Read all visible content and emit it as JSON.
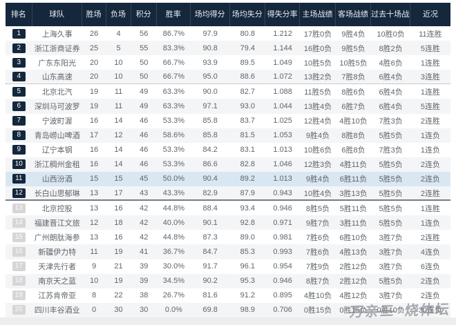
{
  "table": {
    "headers": [
      "排名",
      "球队",
      "胜场",
      "负场",
      "积分",
      "胜率",
      "场均得分",
      "场均失分",
      "得失分率",
      "主场战绩",
      "客场战绩",
      "过去十场战绩",
      "近况"
    ],
    "rows": [
      [
        "1",
        "上海久事",
        "26",
        "4",
        "56",
        "86.7%",
        "97.9",
        "80.8",
        "1.212",
        "17胜0负",
        "9胜4负",
        "10胜0负",
        "11连胜"
      ],
      [
        "2",
        "浙江浙商证券",
        "25",
        "5",
        "55",
        "83.3%",
        "90.8",
        "79.4",
        "1.144",
        "16胜0负",
        "9胜5负",
        "8胜2负",
        "5连胜"
      ],
      [
        "3",
        "广东东阳光",
        "20",
        "10",
        "50",
        "66.7%",
        "93.9",
        "89.5",
        "1.049",
        "10胜5负",
        "10胜5负",
        "4胜6负",
        "1连胜"
      ],
      [
        "4",
        "山东高速",
        "20",
        "10",
        "50",
        "66.7%",
        "95.0",
        "88.6",
        "1.072",
        "13胜2负",
        "7胜8负",
        "6胜4负",
        "3连胜"
      ],
      [
        "5",
        "北京北汽",
        "19",
        "11",
        "49",
        "63.3%",
        "90.0",
        "82.7",
        "1.088",
        "11胜5负",
        "8胜6负",
        "6胜4负",
        "1连胜"
      ],
      [
        "6",
        "深圳马可波罗",
        "19",
        "11",
        "49",
        "63.3%",
        "97.1",
        "93.0",
        "1.044",
        "13胜4负",
        "6胜7负",
        "6胜4负",
        "5连胜"
      ],
      [
        "7",
        "宁波町渥",
        "16",
        "14",
        "46",
        "53.3%",
        "85.8",
        "83.7",
        "1.025",
        "12胜4负",
        "4胜10负",
        "7胜3负",
        "2连胜"
      ],
      [
        "8",
        "青岛崂山啤酒",
        "17",
        "12",
        "46",
        "58.6%",
        "85.8",
        "81.5",
        "1.053",
        "9胜4负",
        "8胜8负",
        "5胜5负",
        "1连负"
      ],
      [
        "9",
        "辽宁本钢",
        "16",
        "14",
        "46",
        "53.3%",
        "84.2",
        "83.1",
        "1.013",
        "10胜6负",
        "6胜8负",
        "7胜3负",
        "1连负"
      ],
      [
        "10",
        "浙江稠州金租",
        "16",
        "14",
        "46",
        "53.3%",
        "86.6",
        "82.8",
        "1.046",
        "12胜3负",
        "4胜11负",
        "5胜5负",
        "2连负"
      ],
      [
        "11",
        "山西汾酒",
        "15",
        "15",
        "45",
        "50.0%",
        "90.4",
        "89.2",
        "1.013",
        "9胜4负",
        "6胜11负",
        "5胜5负",
        "2连负"
      ],
      [
        "12",
        "长白山思郁琳",
        "13",
        "17",
        "43",
        "43.3%",
        "82.9",
        "87.9",
        "0.943",
        "10胜4负",
        "3胜13负",
        "5胜5负",
        "2连胜"
      ],
      [
        "13",
        "北京控股",
        "13",
        "16",
        "42",
        "44.8%",
        "88.4",
        "93.4",
        "0.946",
        "8胜5负",
        "5胜11负",
        "5胜5负",
        "1连胜"
      ],
      [
        "14",
        "福建晋江文旅",
        "12",
        "18",
        "42",
        "40.0%",
        "90.1",
        "92.8",
        "0.971",
        "9胜7负",
        "3胜11负",
        "5胜5负",
        "1连负"
      ],
      [
        "15",
        "广州朗肽海参",
        "13",
        "16",
        "42",
        "44.8%",
        "87.3",
        "89.0",
        "0.981",
        "7胜6负",
        "6胜10负",
        "3胜7负",
        "2连胜"
      ],
      [
        "16",
        "新疆伊力特",
        "11",
        "19",
        "41",
        "36.7%",
        "84.7",
        "85.3",
        "0.993",
        "7胜6负",
        "4胜13负",
        "3胜7负",
        "4连负"
      ],
      [
        "17",
        "天津先行者",
        "9",
        "21",
        "39",
        "30.0%",
        "91.7",
        "96.1",
        "0.954",
        "7胜9负",
        "2胜12负",
        "3胜7负",
        "6连负"
      ],
      [
        "18",
        "南京天之蓝",
        "10",
        "19",
        "39",
        "34.5%",
        "90.2",
        "95.3",
        "0.946",
        "8胜7负",
        "2胜12负",
        "5胜5负",
        "2连负"
      ],
      [
        "19",
        "江苏肯帝亚",
        "8",
        "22",
        "38",
        "26.7%",
        "81.6",
        "91.2",
        "0.895",
        "4胜10负",
        "4胜12负",
        "3胜7负",
        "2连负"
      ],
      [
        "20",
        "四川丰谷酒业",
        "0",
        "30",
        "30",
        "0.0%",
        "69.8",
        "98.9",
        "0.706",
        "0胜15负",
        "0胜15负",
        "0胜10负",
        "30连负"
      ]
    ],
    "dotted_line_after_rank": 4,
    "cutoff_line_after_rank": 12,
    "highlighted_rank": 11,
    "gray_badge_from_rank": 13
  },
  "watermark": {
    "part1": "万亲三",
    "part2": "烧体坛"
  },
  "colors": {
    "header-bg": "#15273c",
    "header-text": "#e7edf4",
    "row-alt": "#f4f5f7",
    "row-hl": "#d9e7f3",
    "badge-dark": "#14273d",
    "badge-light": "#d6d6d6",
    "body-text": "#5f6468"
  }
}
